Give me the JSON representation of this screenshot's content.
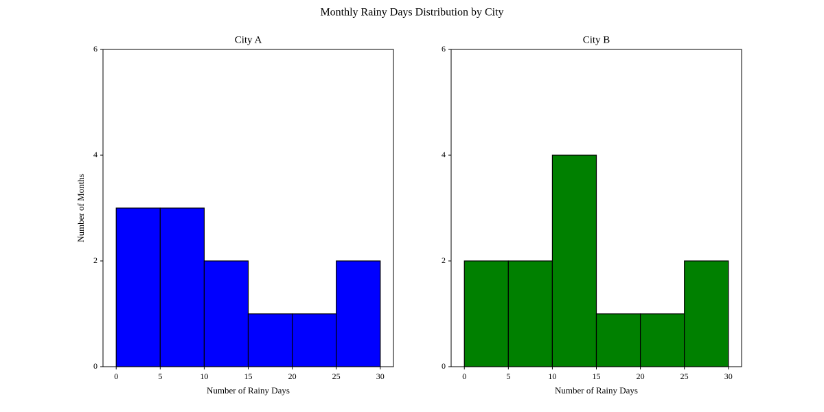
{
  "title": "Monthly Rainy Days Distribution by City",
  "chart_data": [
    {
      "type": "histogram",
      "title": "City A",
      "xlabel": "Number of Rainy Days",
      "ylabel": "Number of Months",
      "bins": [
        0,
        5,
        10,
        15,
        20,
        25,
        30
      ],
      "values": [
        3,
        3,
        2,
        1,
        1,
        2
      ],
      "color": "#0000ff",
      "edgecolor": "#000000",
      "xlim": [
        -1.5,
        31.5
      ],
      "xticks": [
        0,
        5,
        10,
        15,
        20,
        25,
        30
      ],
      "ylim": [
        0,
        6
      ],
      "yticks": [
        0,
        2,
        4,
        6
      ]
    },
    {
      "type": "histogram",
      "title": "City B",
      "xlabel": "Number of Rainy Days",
      "bins": [
        0,
        5,
        10,
        15,
        20,
        25,
        30
      ],
      "values": [
        2,
        2,
        4,
        1,
        1,
        2
      ],
      "color": "#008000",
      "edgecolor": "#000000",
      "xlim": [
        -1.5,
        31.5
      ],
      "xticks": [
        0,
        5,
        10,
        15,
        20,
        25,
        30
      ],
      "ylim": [
        0,
        6
      ],
      "yticks": [
        0,
        2,
        4,
        6
      ]
    }
  ]
}
